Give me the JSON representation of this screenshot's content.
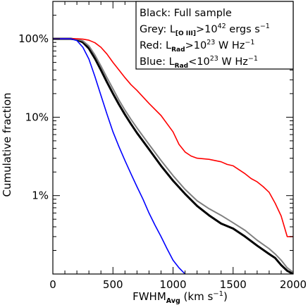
{
  "chart_data": {
    "type": "line",
    "xlabel_main": "FWHM",
    "xlabel_sub": "Avg",
    "xlabel_units": " (km s",
    "xlabel_units_sup": "−1",
    "xlabel_close": ")",
    "ylabel": "Cumulative fraction",
    "xlim": [
      0,
      2000
    ],
    "ylog": true,
    "ylim_percent": [
      0.1,
      300
    ],
    "x_ticks": [
      {
        "value": 0,
        "label": "0"
      },
      {
        "value": 500,
        "label": "500"
      },
      {
        "value": 1000,
        "label": "1000"
      },
      {
        "value": 1500,
        "label": "1500"
      },
      {
        "value": 2000,
        "label": "2000"
      }
    ],
    "y_ticks": [
      {
        "value": 1,
        "label": "1%"
      },
      {
        "value": 10,
        "label": "10%"
      },
      {
        "value": 100,
        "label": "100%"
      }
    ],
    "legend_position": "top-right",
    "legend": [
      {
        "parts": [
          {
            "t": "Black:  Full sample"
          }
        ]
      },
      {
        "parts": [
          {
            "t": "Grey:  L"
          },
          {
            "t": "[O III]",
            "k": "sub"
          },
          {
            "t": ">10"
          },
          {
            "t": "42",
            "k": "sup"
          },
          {
            "t": " ergs s"
          },
          {
            "t": "−1",
            "k": "sup"
          }
        ]
      },
      {
        "parts": [
          {
            "t": "Red:    L"
          },
          {
            "t": "Rad",
            "k": "sub"
          },
          {
            "t": ">10"
          },
          {
            "t": "23",
            "k": "sup"
          },
          {
            "t": " W Hz"
          },
          {
            "t": "−1",
            "k": "sup"
          }
        ]
      },
      {
        "parts": [
          {
            "t": "Blue:  L"
          },
          {
            "t": "Rad",
            "k": "sub"
          },
          {
            "t": "<10"
          },
          {
            "t": "23",
            "k": "sup"
          },
          {
            "t": " W Hz"
          },
          {
            "t": "−1",
            "k": "sup"
          }
        ]
      }
    ],
    "series": [
      {
        "color": "#000000",
        "width": 3,
        "x": [
          0,
          150,
          200,
          250,
          300,
          350,
          400,
          450,
          500,
          550,
          600,
          650,
          700,
          800,
          900,
          1000,
          1100,
          1200,
          1300,
          1400,
          1500,
          1600,
          1700,
          1800,
          1850,
          1900,
          1950,
          2000
        ],
        "y": [
          100,
          100,
          98,
          90,
          75,
          56,
          40,
          28,
          20,
          14.5,
          10.8,
          8.2,
          6.3,
          3.9,
          2.4,
          1.55,
          1.05,
          0.74,
          0.56,
          0.44,
          0.38,
          0.3,
          0.23,
          0.18,
          0.16,
          0.13,
          0.11,
          0.1
        ]
      },
      {
        "color": "#808080",
        "width": 2,
        "x": [
          0,
          150,
          200,
          250,
          300,
          350,
          400,
          450,
          500,
          550,
          600,
          650,
          700,
          800,
          900,
          1000,
          1100,
          1200,
          1300,
          1400,
          1500,
          1600,
          1700,
          1800,
          1850,
          1900,
          1950,
          2000
        ],
        "y": [
          100,
          100,
          99,
          94,
          81,
          62,
          45,
          32,
          23,
          16.5,
          12.3,
          9.4,
          7.3,
          4.5,
          2.8,
          1.8,
          1.2,
          0.86,
          0.68,
          0.56,
          0.45,
          0.36,
          0.27,
          0.21,
          0.18,
          0.15,
          0.12,
          0.105
        ]
      },
      {
        "color": "#ff0000",
        "width": 1.6,
        "x": [
          0,
          150,
          200,
          250,
          300,
          350,
          400,
          450,
          500,
          550,
          600,
          650,
          700,
          800,
          900,
          1000,
          1050,
          1100,
          1150,
          1200,
          1300,
          1400,
          1450,
          1500,
          1600,
          1650,
          1700,
          1750,
          1800,
          1850,
          1900,
          1950,
          2000
        ],
        "y": [
          100,
          100,
          100,
          99,
          96,
          89,
          78,
          64,
          50,
          40,
          32,
          26,
          22,
          15,
          10.5,
          6.5,
          4.5,
          3.6,
          3.2,
          3.0,
          2.9,
          2.7,
          2.5,
          2.4,
          1.9,
          1.65,
          1.5,
          1.3,
          1.1,
          0.8,
          0.55,
          0.3,
          0.3
        ]
      },
      {
        "color": "#0000ff",
        "width": 1.6,
        "x": [
          0,
          150,
          200,
          250,
          300,
          350,
          400,
          450,
          500,
          550,
          600,
          650,
          700,
          750,
          800,
          850,
          900,
          950,
          1000,
          1050,
          1100
        ],
        "y": [
          100,
          100,
          95,
          78,
          55,
          33,
          19,
          11,
          6.5,
          4.2,
          2.8,
          1.9,
          1.3,
          0.9,
          0.6,
          0.42,
          0.3,
          0.21,
          0.15,
          0.12,
          0.1
        ]
      }
    ]
  }
}
